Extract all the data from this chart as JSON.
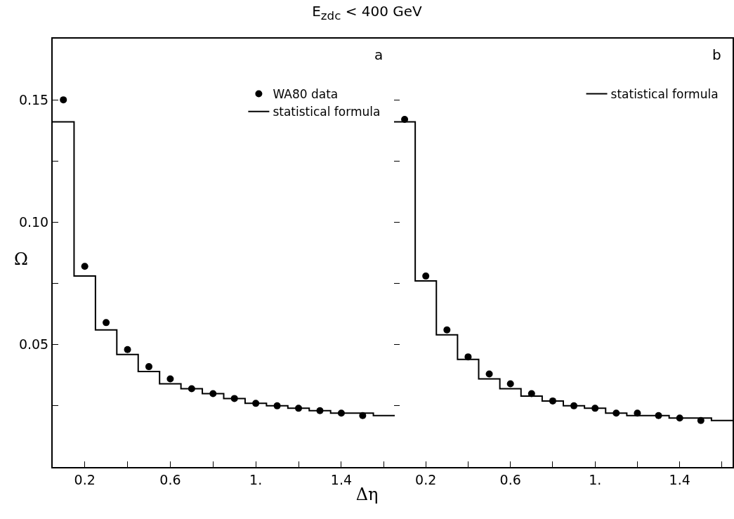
{
  "chart_data": [
    {
      "type": "scatter",
      "title": "E$_{zdc}$ < 400 GeV",
      "xlabel": "Δη",
      "ylabel": "Ω",
      "annotations": [
        "a"
      ],
      "line_style": "solid",
      "grid": false,
      "legend": "top right",
      "xlim": [
        0.05,
        1.65
      ],
      "xticks": [
        {
          "value": 0.2,
          "label": "0.2"
        },
        {
          "value": 0.4,
          "label": null
        },
        {
          "value": 0.6,
          "label": "0.6"
        },
        {
          "value": 0.8,
          "label": null
        },
        {
          "value": 1.0,
          "label": "1."
        },
        {
          "value": 1.2,
          "label": null
        },
        {
          "value": 1.4,
          "label": "1.4"
        },
        {
          "value": 1.6,
          "label": null
        }
      ],
      "ylim": [
        0,
        0.175
      ],
      "yticks": [
        {
          "value": 0.025,
          "label": null
        },
        {
          "value": 0.05,
          "label": "0.05"
        },
        {
          "value": 0.075,
          "label": null
        },
        {
          "value": 0.1,
          "label": "0.10"
        },
        {
          "value": 0.125,
          "label": null
        },
        {
          "value": 0.15,
          "label": "0.15"
        },
        {
          "value": 0.175,
          "label": null
        }
      ],
      "series": [
        {
          "name": "WA80 data",
          "marker": "circle",
          "color": "#000000",
          "x": [
            0.1,
            0.2,
            0.3,
            0.4,
            0.5,
            0.6,
            0.7,
            0.8,
            0.9,
            1.0,
            1.1,
            1.2,
            1.3,
            1.4,
            1.5
          ],
          "values": [
            0.15,
            0.082,
            0.059,
            0.048,
            0.041,
            0.036,
            0.032,
            0.03,
            0.028,
            0.026,
            0.025,
            0.024,
            0.023,
            0.022,
            0.021
          ]
        },
        {
          "name": "statistical formula",
          "type": "step",
          "color": "#000000",
          "x": [
            0.05,
            0.15,
            0.25,
            0.35,
            0.45,
            0.55,
            0.65,
            0.75,
            0.85,
            0.95,
            1.05,
            1.15,
            1.25,
            1.35,
            1.45,
            1.55,
            1.65
          ],
          "values": [
            0.141,
            0.078,
            0.056,
            0.046,
            0.039,
            0.034,
            0.032,
            0.03,
            0.028,
            0.026,
            0.025,
            0.024,
            0.023,
            0.022,
            0.022,
            0.021,
            0.021
          ]
        }
      ]
    },
    {
      "type": "scatter",
      "annotations": [
        "b"
      ],
      "line_style": "solid",
      "grid": false,
      "legend": "top right",
      "tick_labels": "x",
      "xlim": [
        0.05,
        1.65
      ],
      "xticks": [
        {
          "value": 0.2,
          "label": "0.2"
        },
        {
          "value": 0.4,
          "label": null
        },
        {
          "value": 0.6,
          "label": "0.6"
        },
        {
          "value": 0.8,
          "label": null
        },
        {
          "value": 1.0,
          "label": "1."
        },
        {
          "value": 1.2,
          "label": null
        },
        {
          "value": 1.4,
          "label": "1.4"
        },
        {
          "value": 1.6,
          "label": null
        }
      ],
      "ylim": [
        0,
        0.175
      ],
      "yticks": [
        {
          "value": 0.025,
          "label": null
        },
        {
          "value": 0.05,
          "label": null
        },
        {
          "value": 0.075,
          "label": null
        },
        {
          "value": 0.1,
          "label": null
        },
        {
          "value": 0.125,
          "label": null
        },
        {
          "value": 0.15,
          "label": null
        },
        {
          "value": 0.175,
          "label": null
        }
      ],
      "series": [
        {
          "marker": "circle",
          "color": "#000000",
          "x": [
            0.1,
            0.2,
            0.3,
            0.4,
            0.5,
            0.6,
            0.7,
            0.8,
            0.9,
            1.0,
            1.1,
            1.2,
            1.3,
            1.4,
            1.5
          ],
          "values": [
            0.142,
            0.078,
            0.056,
            0.045,
            0.038,
            0.034,
            0.03,
            0.027,
            0.025,
            0.024,
            0.022,
            0.022,
            0.021,
            0.02,
            0.019
          ]
        },
        {
          "name": "statistical formula",
          "type": "step",
          "color": "#000000",
          "x": [
            0.05,
            0.15,
            0.25,
            0.35,
            0.45,
            0.55,
            0.65,
            0.75,
            0.85,
            0.95,
            1.05,
            1.15,
            1.25,
            1.35,
            1.45,
            1.55,
            1.65
          ],
          "values": [
            0.141,
            0.076,
            0.054,
            0.044,
            0.036,
            0.032,
            0.029,
            0.027,
            0.025,
            0.024,
            0.022,
            0.021,
            0.021,
            0.02,
            0.02,
            0.019,
            0.019
          ]
        }
      ]
    }
  ]
}
